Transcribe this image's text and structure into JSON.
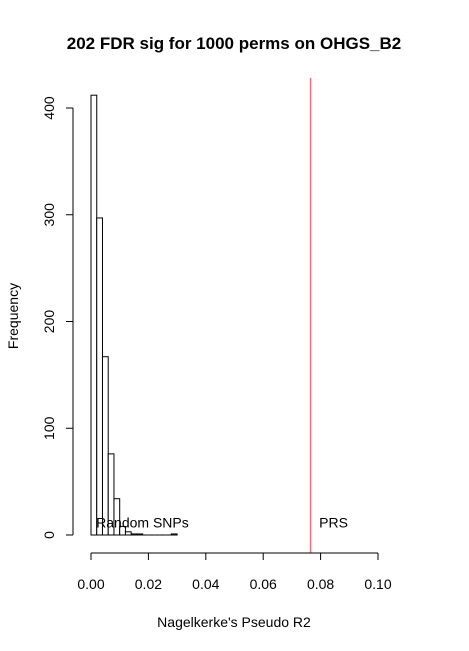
{
  "chart_data": {
    "type": "histogram",
    "title": "202 FDR sig for 1000 perms on OHGS_B2",
    "xlabel": "Nagelkerke's Pseudo R2",
    "ylabel": "Frequency",
    "xlim": [
      0,
      0.1
    ],
    "ylim": [
      0,
      410
    ],
    "x_ticks": [
      0.0,
      0.02,
      0.04,
      0.06,
      0.08,
      0.1
    ],
    "x_tick_labels": [
      "0.00",
      "0.02",
      "0.04",
      "0.06",
      "0.08",
      "0.10"
    ],
    "y_ticks": [
      0,
      100,
      200,
      300,
      400
    ],
    "y_tick_labels": [
      "0",
      "100",
      "200",
      "300",
      "400"
    ],
    "bin_width": 0.002,
    "bins_start": [
      0.0,
      0.002,
      0.004,
      0.006,
      0.008,
      0.01,
      0.012,
      0.014,
      0.016,
      0.018,
      0.02,
      0.022,
      0.024,
      0.026,
      0.028
    ],
    "counts": [
      412,
      297,
      167,
      76,
      34,
      8,
      3,
      1,
      1,
      0,
      0,
      0,
      0,
      0,
      1
    ],
    "vline": {
      "x": 0.0765,
      "color": "#f2707a"
    },
    "annotations": [
      {
        "text": "Random SNPs",
        "x": 0.0018,
        "y": 7
      },
      {
        "text": "PRS",
        "x": 0.0795,
        "y": 7
      }
    ],
    "bar_fill": "#ffffff",
    "bar_stroke": "#000000"
  }
}
